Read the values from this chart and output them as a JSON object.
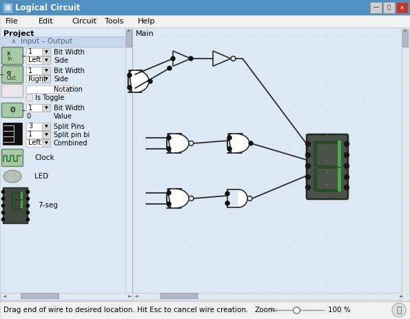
{
  "title": "Logical Circuit",
  "bg_window": "#f0f0f0",
  "bg_canvas": "#dce8f0",
  "bg_left_panel": "#dce8f0",
  "dot_color": "#b0c8d8",
  "wire_color": "#2a2a2a",
  "gate_fill": "#ffffff",
  "gate_stroke": "#2a2a2a",
  "node_color": "#111111",
  "menu_items": [
    "File",
    "Edit",
    "Circuit",
    "Tools",
    "Help"
  ],
  "status_text": "Drag end of wire to desired location. Hit Esc to cancel wire creation.",
  "zoom_text": "Zoom:",
  "zoom_pct": "100 %"
}
